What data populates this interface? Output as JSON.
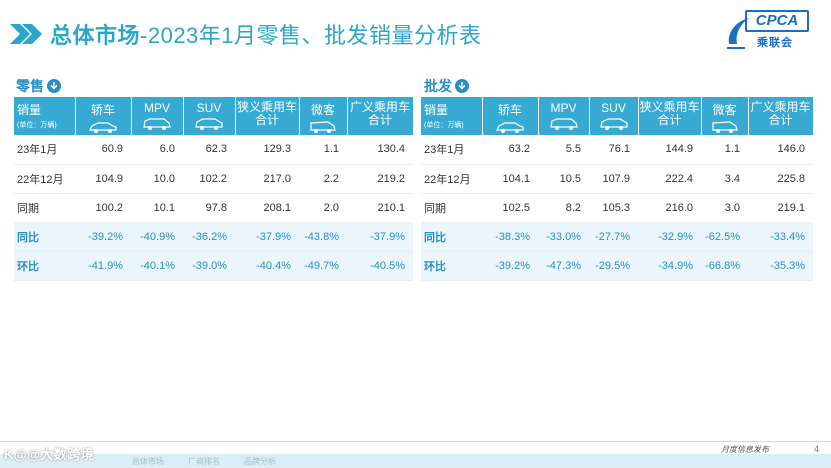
{
  "header": {
    "title_bold": "总体市场",
    "title_rest": "-2023年1月零售、批发销量分析表",
    "logo_text": "CPCA",
    "logo_cn": "乘联会"
  },
  "retail": {
    "heading": "零售",
    "corner_label": "销量",
    "corner_unit": "(单位：万辆)",
    "columns": [
      "轿车",
      "MPV",
      "SUV",
      "狭义乘用车合计",
      "微客",
      "广义乘用车合计"
    ],
    "rows": [
      {
        "label": "23年1月",
        "values": [
          "60.9",
          "6.0",
          "62.3",
          "129.3",
          "1.1",
          "130.4"
        ]
      },
      {
        "label": "22年12月",
        "values": [
          "104.9",
          "10.0",
          "102.2",
          "217.0",
          "2.2",
          "219.2"
        ]
      },
      {
        "label": "同期",
        "values": [
          "100.2",
          "10.1",
          "97.8",
          "208.1",
          "2.0",
          "210.1"
        ]
      },
      {
        "label": "同比",
        "values": [
          "-39.2%",
          "-40.9%",
          "-36.2%",
          "-37.9%",
          "-43.8%",
          "-37.9%"
        ]
      },
      {
        "label": "环比",
        "values": [
          "-41.9%",
          "-40.1%",
          "-39.0%",
          "-40.4%",
          "-49.7%",
          "-40.5%"
        ]
      }
    ]
  },
  "wholesale": {
    "heading": "批发",
    "corner_label": "销量",
    "corner_unit": "(单位：万辆)",
    "columns": [
      "轿车",
      "MPV",
      "SUV",
      "狭义乘用车合计",
      "微客",
      "广义乘用车合计"
    ],
    "rows": [
      {
        "label": "23年1月",
        "values": [
          "63.2",
          "5.5",
          "76.1",
          "144.9",
          "1.1",
          "146.0"
        ]
      },
      {
        "label": "22年12月",
        "values": [
          "104.1",
          "10.5",
          "107.9",
          "222.4",
          "3.4",
          "225.8"
        ]
      },
      {
        "label": "同期",
        "values": [
          "102.5",
          "8.2",
          "105.3",
          "216.0",
          "3.0",
          "219.1"
        ]
      },
      {
        "label": "同比",
        "values": [
          "-38.3%",
          "-33.0%",
          "-27.7%",
          "-32.9%",
          "-62.5%",
          "-33.4%"
        ]
      },
      {
        "label": "环比",
        "values": [
          "-39.2%",
          "-47.3%",
          "-29.5%",
          "-34.9%",
          "-66.8%",
          "-35.3%"
        ]
      }
    ]
  },
  "footer": {
    "watermark": "K@@大数跨境",
    "tabs": [
      "总体市场",
      "厂商排名",
      "品牌分析"
    ],
    "release": "月度信息发布",
    "page": "4"
  }
}
